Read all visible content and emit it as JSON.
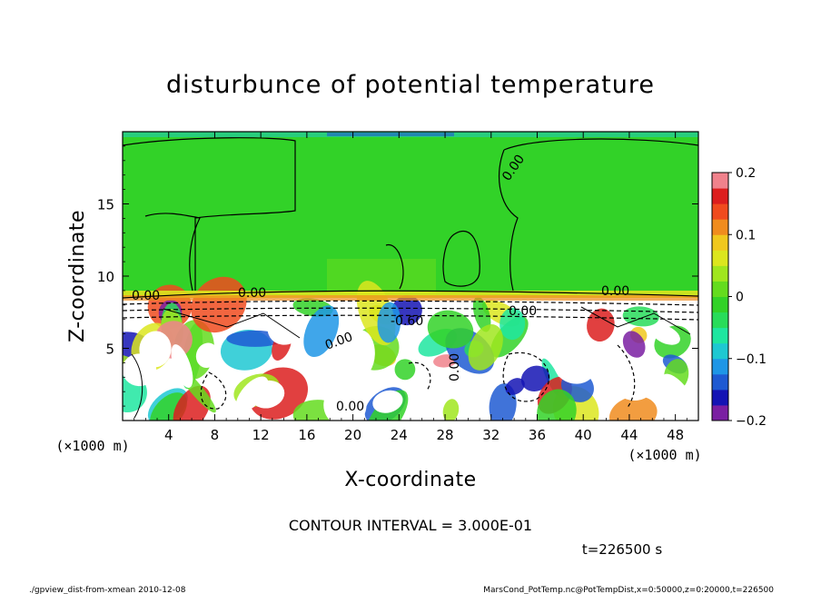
{
  "chart_data": {
    "type": "heatmap",
    "title": "disturbunce of potential temperature",
    "xlabel": "X-coordinate",
    "ylabel": "Z-coordinate",
    "x_unit_label": "(×1000 m)",
    "y_unit_label": "(×1000 m)",
    "xlim": [
      0,
      50
    ],
    "ylim": [
      0,
      20
    ],
    "x_ticks": [
      4,
      8,
      12,
      16,
      20,
      24,
      28,
      32,
      36,
      40,
      44,
      48
    ],
    "y_ticks": [
      5,
      10,
      15
    ],
    "colorbar": {
      "min": -0.2,
      "max": 0.2,
      "tick_values": [
        0.2,
        0.1,
        0,
        -0.1,
        -0.2
      ],
      "tick_labels": [
        "0.2",
        "0.1",
        "0",
        "−0.1",
        "−0.2"
      ],
      "colors": [
        "#7a1fa2",
        "#1414b4",
        "#1e5ad2",
        "#1e96e6",
        "#1ec8d2",
        "#1ee6a0",
        "#28dc5a",
        "#32d228",
        "#64dc1e",
        "#a0e61e",
        "#dce61e",
        "#f0c81e",
        "#f08c1e",
        "#f04b1e",
        "#dc1e1e",
        "#f0828c"
      ]
    },
    "contour_labels": [
      "0.00",
      "0.00",
      "0.00",
      "0.00",
      "-0.60",
      "0.00",
      "0.00",
      "0.00",
      "0.00"
    ],
    "contour_interval_text": "CONTOUR INTERVAL = 3.000E-01",
    "time_text": "t=226500 s",
    "footer_left": "./gpview_dist-from-xmean  2010-12-08",
    "footer_right": "MarsCond_PotTemp.nc@PotTempDist,x=0:50000,z=0:20000,t=226500"
  }
}
